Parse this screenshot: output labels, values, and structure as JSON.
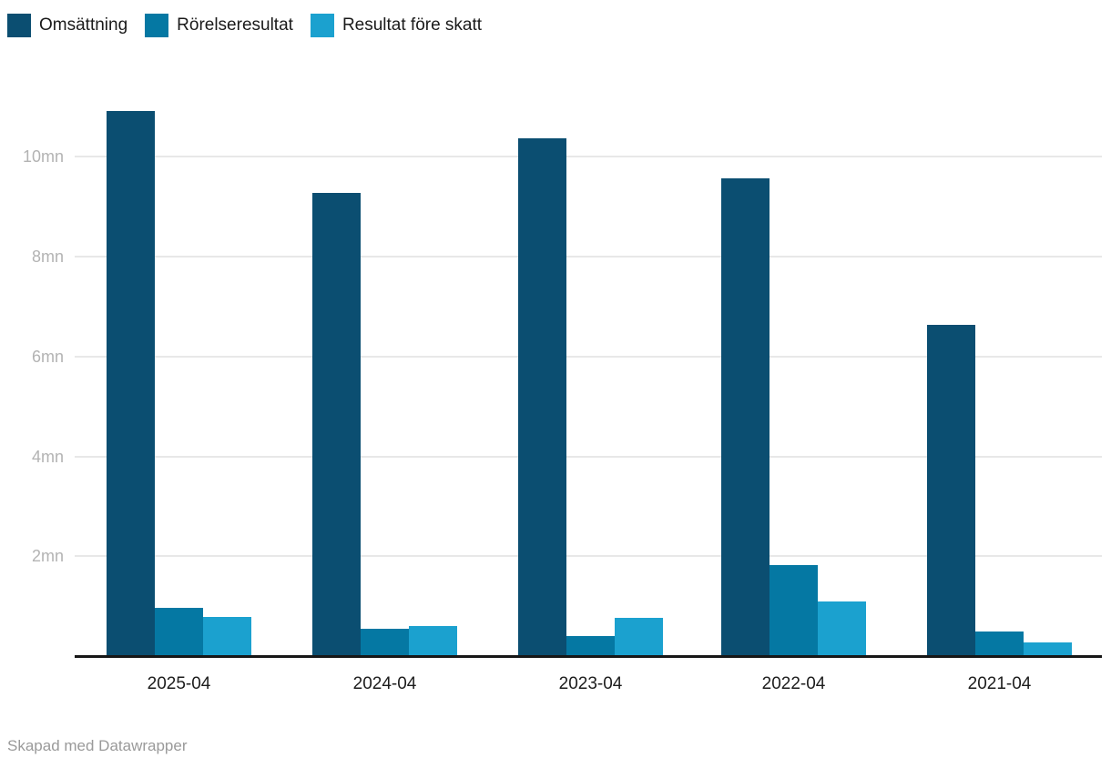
{
  "chart_data": {
    "type": "bar",
    "title": "",
    "categories": [
      "2025-04",
      "2024-04",
      "2023-04",
      "2022-04",
      "2021-04"
    ],
    "series": [
      {
        "name": "Omsättning",
        "color": "#0b4e71",
        "values": [
          10.92,
          9.27,
          10.36,
          9.56,
          6.63
        ]
      },
      {
        "name": "Rörelseresultat",
        "color": "#0578a3",
        "values": [
          0.96,
          0.54,
          0.41,
          1.83,
          0.5
        ]
      },
      {
        "name": "Resultat före skatt",
        "color": "#1ba1cf",
        "values": [
          0.78,
          0.6,
          0.77,
          1.09,
          0.27
        ]
      }
    ],
    "unit": "mn",
    "y_ticks": [
      {
        "value": 2,
        "label": "2mn"
      },
      {
        "value": 4,
        "label": "4mn"
      },
      {
        "value": 6,
        "label": "6mn"
      },
      {
        "value": 8,
        "label": "8mn"
      },
      {
        "value": 10,
        "label": "10mn"
      }
    ],
    "ylim": [
      0,
      11.5
    ],
    "grid": true,
    "legend_position": "top-left"
  },
  "colors": {
    "gridline": "#e8e8e8",
    "axis_line": "#171717",
    "y_tick_text": "#b3b3b3",
    "x_tick_text": "#1d1d1d",
    "legend_text": "#1a1a1a",
    "credit_text": "#9a9a9a",
    "background": "#ffffff"
  },
  "footer": {
    "credit": "Skapad med Datawrapper"
  }
}
